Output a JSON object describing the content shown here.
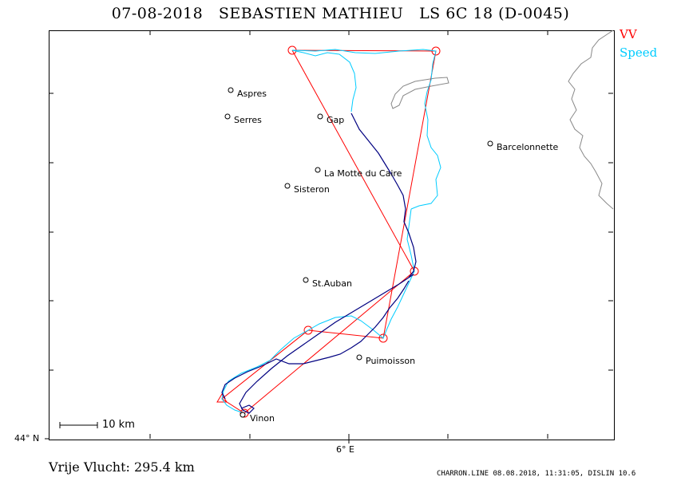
{
  "title": {
    "date": "07-08-2018",
    "pilot": "SEBASTIEN MATHIEU",
    "glider": "LS 6C 18 (D-0045)"
  },
  "legend": {
    "vv": {
      "label": "VV",
      "color": "#ff0000"
    },
    "speed": {
      "label": "Speed",
      "color": "#00ccff"
    }
  },
  "axes": {
    "lat_label": "44° N",
    "lon_label": "6° E"
  },
  "scale_bar": {
    "label": "10  km"
  },
  "towns": [
    {
      "id": "aspres",
      "name": "Aspres"
    },
    {
      "id": "serres",
      "name": "Serres"
    },
    {
      "id": "gap",
      "name": "Gap"
    },
    {
      "id": "barcelonnette",
      "name": "Barcelonnette"
    },
    {
      "id": "la-motte",
      "name": "La Motte du Caire"
    },
    {
      "id": "sisteron",
      "name": "Sisteron"
    },
    {
      "id": "st-auban",
      "name": "St.Auban"
    },
    {
      "id": "puimoisson",
      "name": "Puimoisson"
    },
    {
      "id": "vinon",
      "name": "Vinon"
    }
  ],
  "distance_text": "Vrije Vlucht:  295.4 km",
  "footer_text": "CHARRON.LINE 08.08.2018, 11:31:05, DISLIN 10.6",
  "colors": {
    "task": "#ff0000",
    "speed_track": "#00ccff",
    "climb_track": "#000080",
    "terrain": "#888888"
  }
}
